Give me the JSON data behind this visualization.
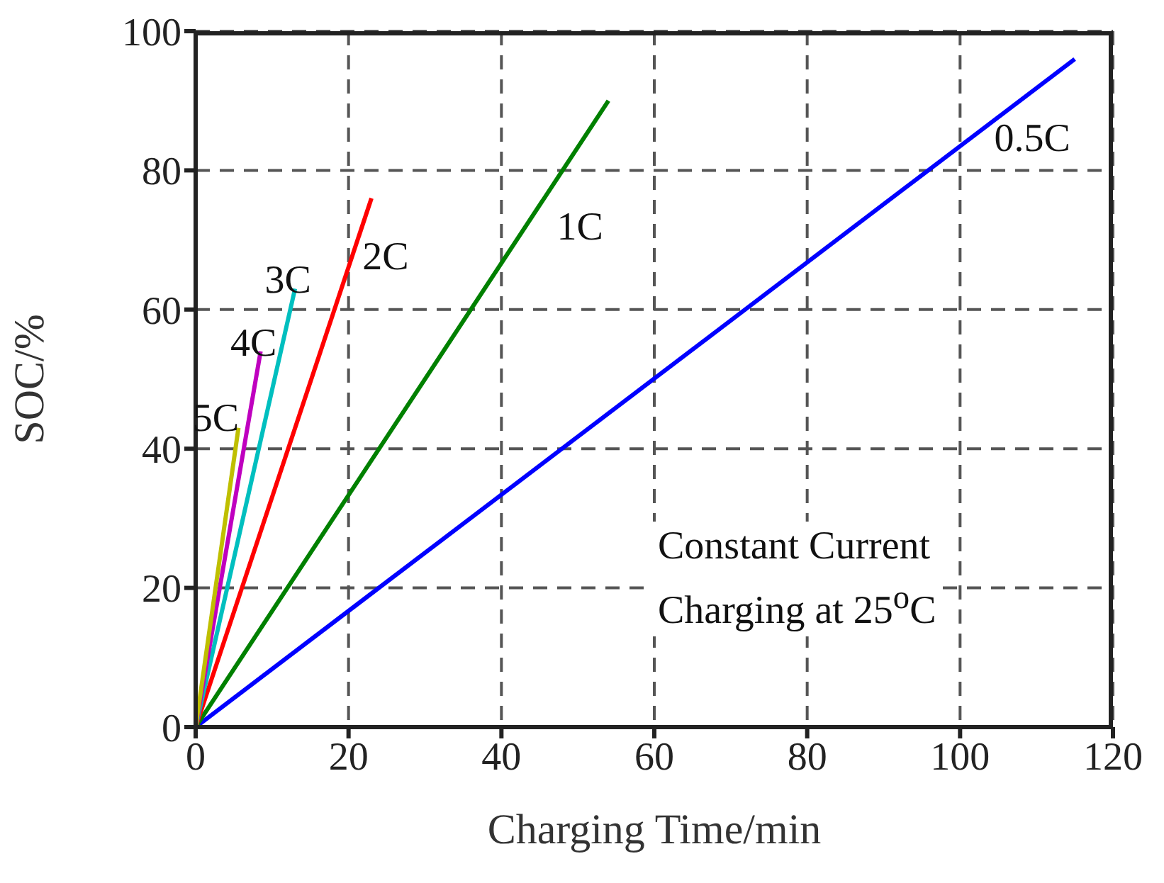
{
  "chart_data": {
    "type": "line",
    "xlabel": "Charging Time/min",
    "ylabel": "SOC/%",
    "xlim": [
      0,
      120
    ],
    "xticks": [
      0,
      20,
      40,
      60,
      80,
      100,
      120
    ],
    "ylim": [
      0,
      100
    ],
    "yticks": [
      0,
      20,
      40,
      60,
      80,
      100
    ],
    "grid": true,
    "marker": "none",
    "line_style": "solid",
    "annotations": [
      "Constant Current\nCharging at 25$^{o}$C"
    ],
    "series": [
      {
        "name": "0.5C",
        "color": "#0000ff",
        "x": [
          0,
          115
        ],
        "values": [
          0,
          96
        ]
      },
      {
        "name": "1C",
        "color": "#008000",
        "x": [
          0,
          54
        ],
        "values": [
          0,
          90
        ]
      },
      {
        "name": "2C",
        "color": "#ff0000",
        "x": [
          0,
          23
        ],
        "values": [
          0,
          76
        ]
      },
      {
        "name": "3C",
        "color": "#00bfbf",
        "x": [
          0,
          13
        ],
        "values": [
          0,
          63
        ]
      },
      {
        "name": "4C",
        "color": "#bf00bf",
        "x": [
          0,
          8.5
        ],
        "values": [
          0,
          54
        ]
      },
      {
        "name": "5C",
        "color": "#bfbf00",
        "x": [
          0,
          5.6
        ],
        "values": [
          0,
          43
        ]
      }
    ]
  }
}
